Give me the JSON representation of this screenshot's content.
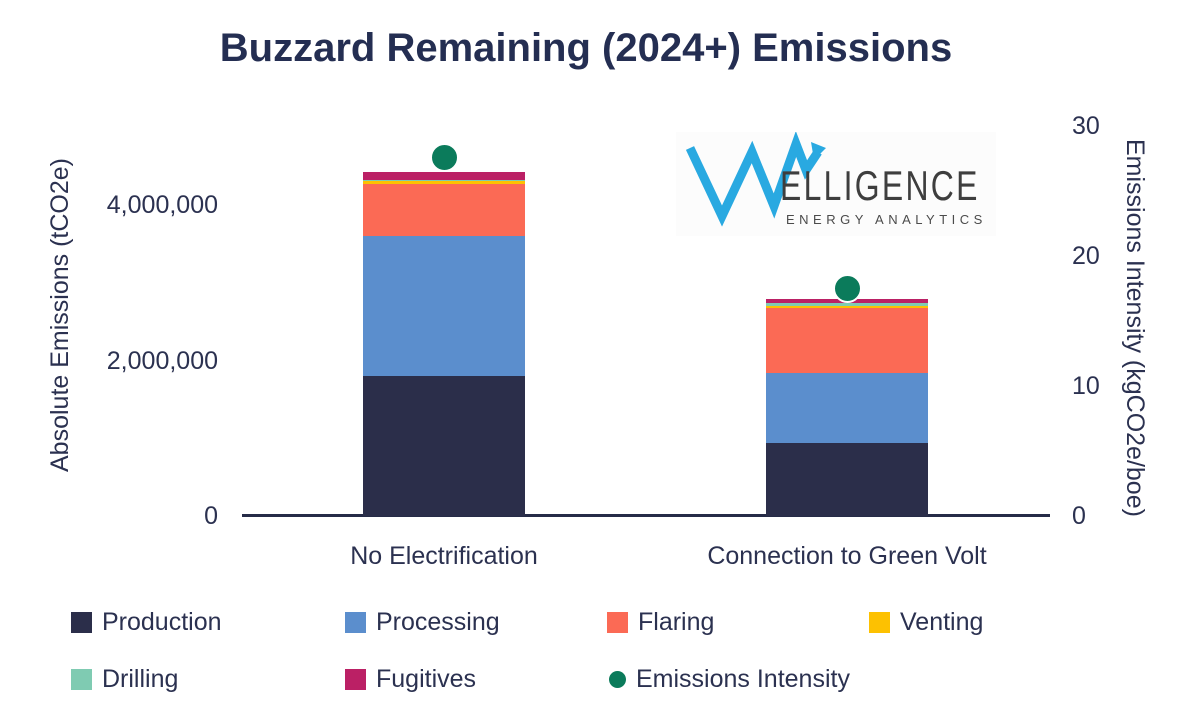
{
  "title": "Buzzard Remaining (2024+) Emissions",
  "logo": {
    "wordmark_tail": "ELLIGENCE",
    "subtitle": "ENERGY ANALYTICS",
    "blue": "#29a9e1"
  },
  "colors": {
    "production": "#2b2e4a",
    "processing": "#5b8ecd",
    "flaring": "#fb6a55",
    "venting": "#fdc101",
    "drilling": "#7fcbb2",
    "fugitives": "#bb2065",
    "intensity": "#0b7b5b",
    "axis_text": "#2b3150"
  },
  "chart_data": {
    "type": "bar",
    "stacked": true,
    "title": "Buzzard Remaining (2024+) Emissions",
    "categories": [
      "No Electrification",
      "Connection to Green Volt"
    ],
    "series": [
      {
        "name": "Production",
        "color_key": "production",
        "values": [
          1800000,
          940000
        ]
      },
      {
        "name": "Processing",
        "color_key": "processing",
        "values": [
          1800000,
          900000
        ]
      },
      {
        "name": "Flaring",
        "color_key": "flaring",
        "values": [
          670000,
          835000
        ]
      },
      {
        "name": "Venting",
        "color_key": "venting",
        "values": [
          45000,
          32000
        ]
      },
      {
        "name": "Drilling",
        "color_key": "drilling",
        "values": [
          8000,
          32000
        ]
      },
      {
        "name": "Fugitives",
        "color_key": "fugitives",
        "values": [
          96000,
          52000
        ]
      }
    ],
    "point_series": {
      "name": "Emissions Intensity",
      "color_key": "intensity",
      "values": [
        27.6,
        17.5
      ]
    },
    "left_axis": {
      "label": "Absolute Emissions (tCO2e)",
      "range": [
        0,
        5200000
      ],
      "ticks": [
        {
          "label": "4,000,000",
          "value": 4000000
        },
        {
          "label": "2,000,000",
          "value": 2000000
        },
        {
          "label": "0",
          "value": 0
        }
      ]
    },
    "right_axis": {
      "label": "Emissions Intensity (kgCO2e/boe)",
      "range": [
        0,
        30
      ],
      "ticks": [
        {
          "label": "30",
          "value": 30
        },
        {
          "label": "20",
          "value": 20
        },
        {
          "label": "10",
          "value": 10
        },
        {
          "label": "0",
          "value": 0
        }
      ]
    },
    "legend": {
      "rows": [
        [
          {
            "label": "Production",
            "color_key": "production",
            "shape": "square"
          },
          {
            "label": "Processing",
            "color_key": "processing",
            "shape": "square"
          },
          {
            "label": "Flaring",
            "color_key": "flaring",
            "shape": "square"
          },
          {
            "label": "Venting",
            "color_key": "venting",
            "shape": "square"
          }
        ],
        [
          {
            "label": "Drilling",
            "color_key": "drilling",
            "shape": "square"
          },
          {
            "label": "Fugitives",
            "color_key": "fugitives",
            "shape": "square"
          },
          {
            "label": "Emissions Intensity",
            "color_key": "intensity",
            "shape": "circle"
          }
        ]
      ]
    }
  }
}
